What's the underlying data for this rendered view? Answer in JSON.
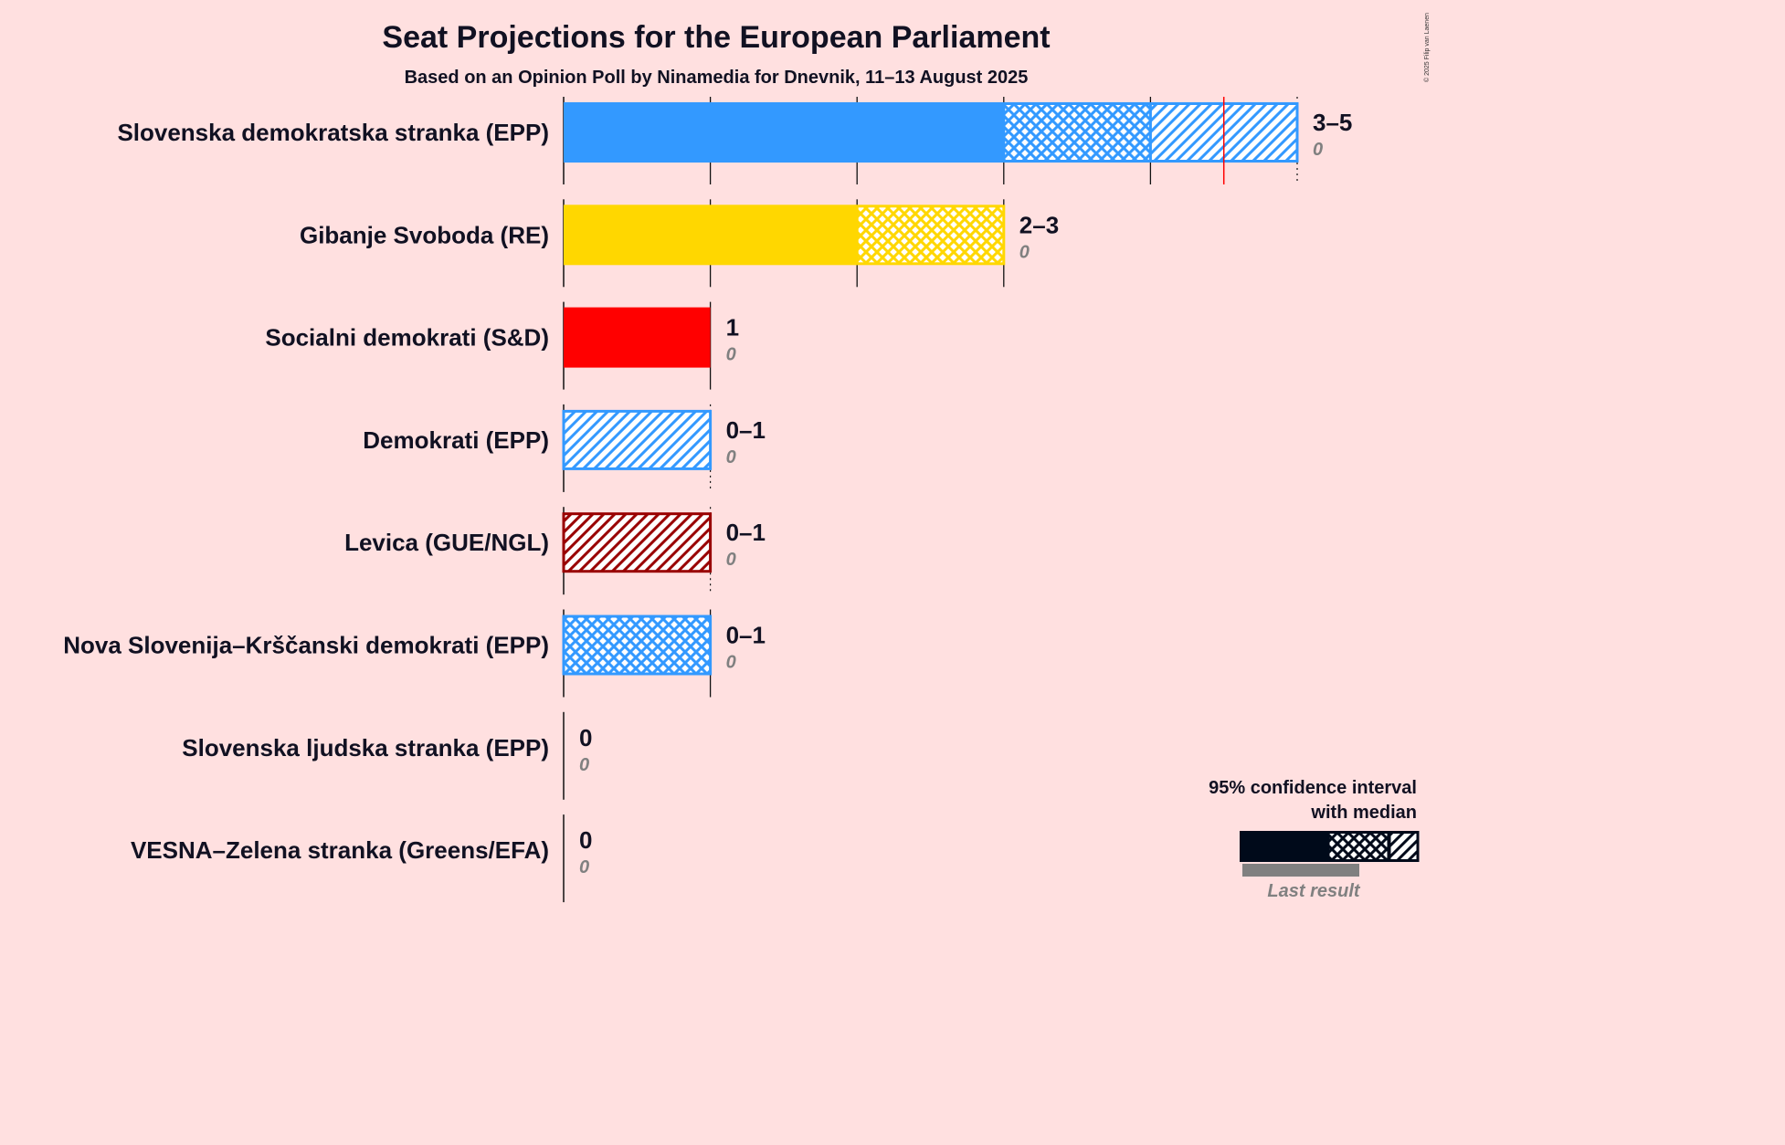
{
  "chart_data": {
    "type": "bar",
    "title": "Seat Projections for the European Parliament",
    "subtitle": "Based on an Opinion Poll by Ninamedia for Dnevnik, 11–13 August 2025",
    "copyright": "© 2025 Filip van Laenen",
    "x_max": 5,
    "parties": [
      {
        "name": "Slovenska demokratska stranka (EPP)",
        "low": 3,
        "median": 4,
        "high": 5,
        "majority_line": 4.5,
        "range": "3–5",
        "last_result": 0,
        "last_label": "0",
        "color": "#3399ff"
      },
      {
        "name": "Gibanje Svoboda (RE)",
        "low": 2,
        "median": 3,
        "high": 3,
        "range": "2–3",
        "last_result": 0,
        "last_label": "0",
        "color": "#ffd700"
      },
      {
        "name": "Socialni demokrati (S&D)",
        "low": 1,
        "median": 1,
        "high": 1,
        "range": "1",
        "last_result": 0,
        "last_label": "0",
        "color": "#ff0000"
      },
      {
        "name": "Demokrati (EPP)",
        "low": 0,
        "median": 0,
        "high": 1,
        "range": "0–1",
        "last_result": 0,
        "last_label": "0",
        "color": "#3399ff"
      },
      {
        "name": "Levica (GUE/NGL)",
        "low": 0,
        "median": 0,
        "high": 1,
        "range": "0–1",
        "last_result": 0,
        "last_label": "0",
        "color": "#990000"
      },
      {
        "name": "Nova Slovenija–Krščanski demokrati (EPP)",
        "low": 0,
        "median": 1,
        "high": 1,
        "range": "0–1",
        "last_result": 0,
        "last_label": "0",
        "color": "#3399ff"
      },
      {
        "name": "Slovenska ljudska stranka (EPP)",
        "low": 0,
        "median": 0,
        "high": 0,
        "range": "0",
        "last_result": 0,
        "last_label": "0",
        "color": "#3399ff"
      },
      {
        "name": "VESNA–Zelena stranka (Greens/EFA)",
        "low": 0,
        "median": 0,
        "high": 0,
        "range": "0",
        "last_result": 0,
        "last_label": "0",
        "color": "#33aa33"
      }
    ],
    "legend": {
      "line1": "95% confidence interval",
      "line2": "with median",
      "last_result": "Last result",
      "color": "#000a1a",
      "last_color": "#808080"
    }
  }
}
